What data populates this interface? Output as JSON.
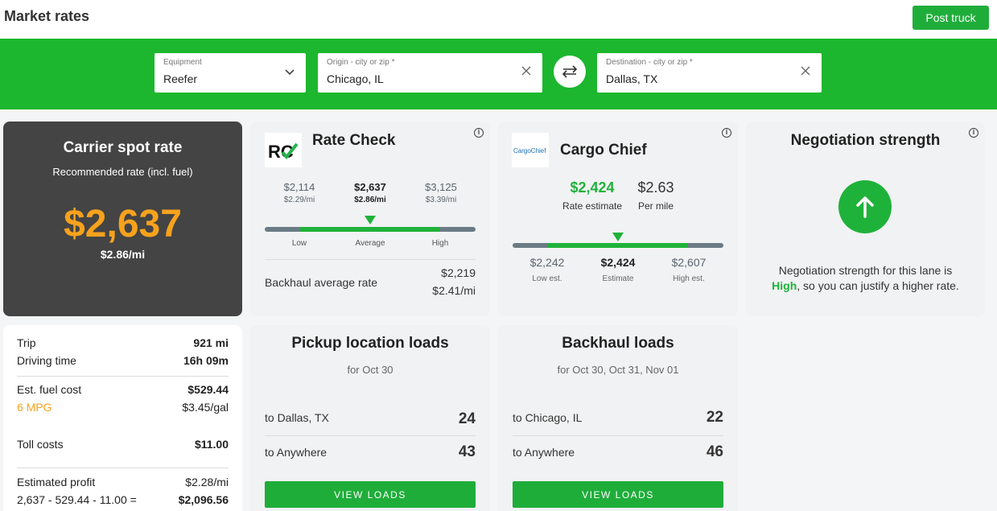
{
  "header": {
    "title": "Market rates",
    "post_truck": "Post truck"
  },
  "search": {
    "equipment": {
      "label": "Equipment",
      "value": "Reefer"
    },
    "origin": {
      "label": "Origin - city or zip *",
      "value": "Chicago, IL"
    },
    "destination": {
      "label": "Destination - city or zip *",
      "value": "Dallas, TX"
    }
  },
  "spot_rate": {
    "title": "Carrier spot rate",
    "subtitle": "Recommended rate (incl. fuel)",
    "amount": "$2,637",
    "per_mile": "$2.86/mi"
  },
  "rate_check": {
    "logo": "RC",
    "title": "Rate Check",
    "low": {
      "value": "$2,114",
      "per_mile": "$2.29/mi",
      "label": "Low"
    },
    "average": {
      "value": "$2,637",
      "per_mile": "$2.86/mi",
      "label": "Average"
    },
    "high": {
      "value": "$3,125",
      "per_mile": "$3.39/mi",
      "label": "High"
    },
    "backhaul_label": "Backhaul average rate",
    "backhaul_value": "$2,219",
    "backhaul_per_mile": "$2.41/mi"
  },
  "cargo_chief": {
    "logo": "CargoChief",
    "title": "Cargo Chief",
    "estimate": "$2,424",
    "estimate_label": "Rate estimate",
    "per_mile": "$2.63",
    "per_mile_label": "Per mile",
    "low": {
      "value": "$2,242",
      "label": "Low est."
    },
    "mid": {
      "value": "$2,424",
      "label": "Estimate"
    },
    "high": {
      "value": "$2,607",
      "label": "High est."
    }
  },
  "negotiation": {
    "title": "Negotiation strength",
    "text_before": "Negotiation strength for this lane is",
    "level": "High",
    "text_after": ", so you can justify a higher rate."
  },
  "trip": {
    "trip_label": "Trip",
    "trip_value": "921 mi",
    "drive_label": "Driving time",
    "drive_value": "16h 09m",
    "fuel_label": "Est. fuel cost",
    "fuel_value": "$529.44",
    "mpg": "6 MPG",
    "gal_price": "$3.45/gal",
    "toll_label": "Toll costs",
    "toll_value": "$11.00",
    "profit_label": "Estimated profit",
    "profit_per_mile": "$2.28/mi",
    "profit_formula": "2,637 - 529.44 - 11.00 =",
    "profit_value": "$2,096.56"
  },
  "pickup_loads": {
    "title": "Pickup location loads",
    "subtitle": "for Oct 30",
    "rows": [
      {
        "dest": "to Dallas, TX",
        "count": "24"
      },
      {
        "dest": "to Anywhere",
        "count": "43"
      }
    ],
    "button": "VIEW LOADS"
  },
  "backhaul_loads": {
    "title": "Backhaul loads",
    "subtitle": "for Oct 30, Oct 31, Nov 01",
    "rows": [
      {
        "dest": "to Chicago, IL",
        "count": "22"
      },
      {
        "dest": "to Anywhere",
        "count": "46"
      }
    ],
    "button": "VIEW LOADS"
  },
  "colors": {
    "brand_green": "#1cb72e",
    "accent_orange": "#f7a21d",
    "dark_card": "#444444"
  }
}
